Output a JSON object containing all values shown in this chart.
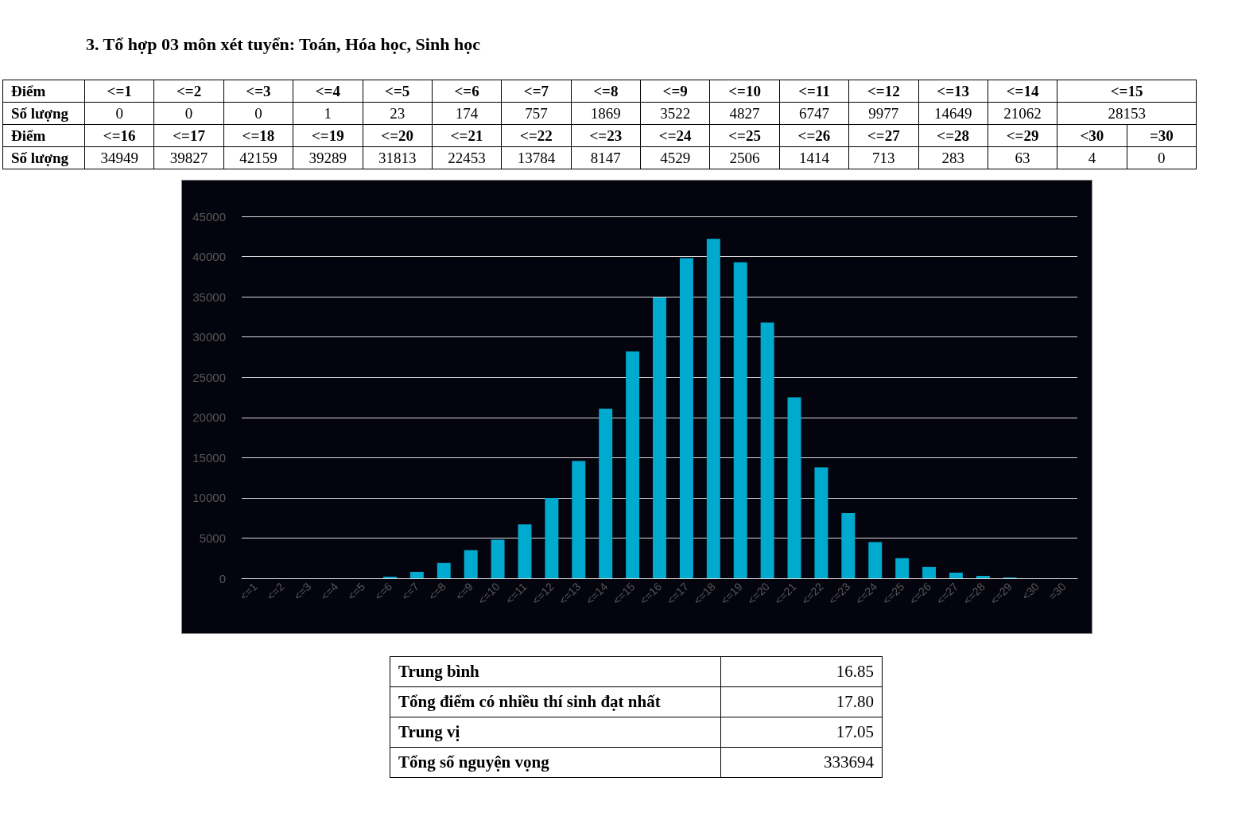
{
  "chart_data": [
    {
      "type": "other",
      "title": "3. Tổ hợp 03 môn xét tuyển: Toán, Hóa học, Sinh học",
      "annotations": [
        "Điểm",
        "<=1",
        "<=2",
        "<=3",
        "<=4",
        "<=5",
        "<=6",
        "<=7",
        "<=8",
        "<=9",
        "<=10",
        "<=11",
        "<=12",
        "<=13",
        "<=14",
        "<=15",
        "Số lượng",
        "0",
        "0",
        "0",
        "1",
        "23",
        "174",
        "757",
        "1869",
        "3522",
        "4827",
        "6747",
        "9977",
        "14649",
        "21062",
        "28153",
        "Điểm",
        "<=16",
        "<=17",
        "<=18",
        "<=19",
        "<=20",
        "<=21",
        "<=22",
        "<=23",
        "<=24",
        "<=25",
        "<=26",
        "<=27",
        "<=28",
        "<=29",
        "<30",
        "=30",
        "Số lượng",
        "34949",
        "39827",
        "42159",
        "39289",
        "31813",
        "22453",
        "13784",
        "8147",
        "4529",
        "2506",
        "1414",
        "713",
        "283",
        "63",
        "4",
        "0"
      ]
    },
    {
      "type": "bar",
      "categories": [
        "<=1",
        "<=2",
        "<=3",
        "<=4",
        "<=5",
        "<=6",
        "<=7",
        "<=8",
        "<=9",
        "<=10",
        "<=11",
        "<=12",
        "<=13",
        "<=14",
        "<=15",
        "<=16",
        "<=17",
        "<=18",
        "<=19",
        "<=20",
        "<=21",
        "<=22",
        "<=23",
        "<=24",
        "<=25",
        "<=26",
        "<=27",
        "<=28",
        "<=29",
        "<30",
        "=30"
      ],
      "values": [
        0,
        0,
        0,
        0,
        0,
        200,
        800,
        1900,
        3500,
        4800,
        6700,
        10000,
        14600,
        21100,
        28200,
        34900,
        39800,
        42200,
        39300,
        31800,
        22500,
        13800,
        8100,
        4500,
        2500,
        1400,
        700,
        300,
        100,
        0,
        0
      ],
      "color": "#00a9ce",
      "ylim": [
        0,
        45000
      ],
      "yticks": [
        0,
        5000,
        10000,
        15000,
        20000,
        25000,
        30000,
        35000,
        40000,
        45000
      ],
      "grid": "y",
      "annotations": [
        "Trung bình",
        "16.85",
        "Tổng điểm có nhiều thí sinh đạt nhất",
        "17.80",
        "Trung vị",
        "17.05",
        "Tổng số nguyện vọng",
        "333694"
      ]
    }
  ]
}
